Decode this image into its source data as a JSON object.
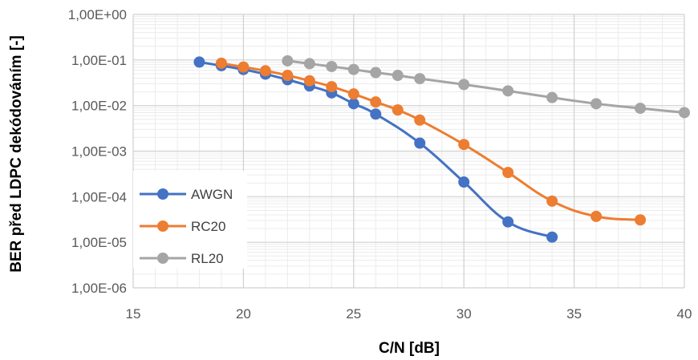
{
  "chart_data": {
    "type": "line",
    "title": "",
    "xlabel": "C/N [dB]",
    "ylabel": "BER před LDPC dekódováním [-]",
    "xlim": [
      15,
      40
    ],
    "ylim": [
      1e-06,
      1
    ],
    "yscale": "log",
    "grid": true,
    "legend_position": "bottom-left",
    "x_ticks": [
      "15",
      "20",
      "25",
      "30",
      "35",
      "40"
    ],
    "y_ticks": [
      "1,00E+00",
      "1,00E-01",
      "1,00E-02",
      "1,00E-03",
      "1,00E-04",
      "1,00E-05",
      "1,00E-06"
    ],
    "series": [
      {
        "name": "AWGN",
        "color": "#4472C4",
        "x": [
          18,
          19,
          20,
          21,
          22,
          23,
          24,
          25,
          26,
          28,
          30,
          32,
          34
        ],
        "y": [
          0.09,
          0.075,
          0.062,
          0.049,
          0.037,
          0.027,
          0.019,
          0.011,
          0.0065,
          0.0015,
          0.00021,
          2.8e-05,
          1.3e-05
        ]
      },
      {
        "name": "RC20",
        "color": "#ED7D31",
        "x": [
          19,
          20,
          21,
          22,
          23,
          24,
          25,
          26,
          27,
          28,
          30,
          32,
          34,
          36,
          38
        ],
        "y": [
          0.085,
          0.07,
          0.058,
          0.046,
          0.035,
          0.026,
          0.018,
          0.012,
          0.008,
          0.0048,
          0.0014,
          0.00034,
          8e-05,
          3.7e-05,
          3.1e-05
        ]
      },
      {
        "name": "RL20",
        "color": "#A5A5A5",
        "x": [
          22,
          23,
          24,
          25,
          26,
          27,
          28,
          30,
          32,
          34,
          36,
          38,
          40
        ],
        "y": [
          0.096,
          0.083,
          0.072,
          0.062,
          0.053,
          0.046,
          0.039,
          0.029,
          0.021,
          0.015,
          0.011,
          0.0087,
          0.007
        ]
      }
    ]
  }
}
